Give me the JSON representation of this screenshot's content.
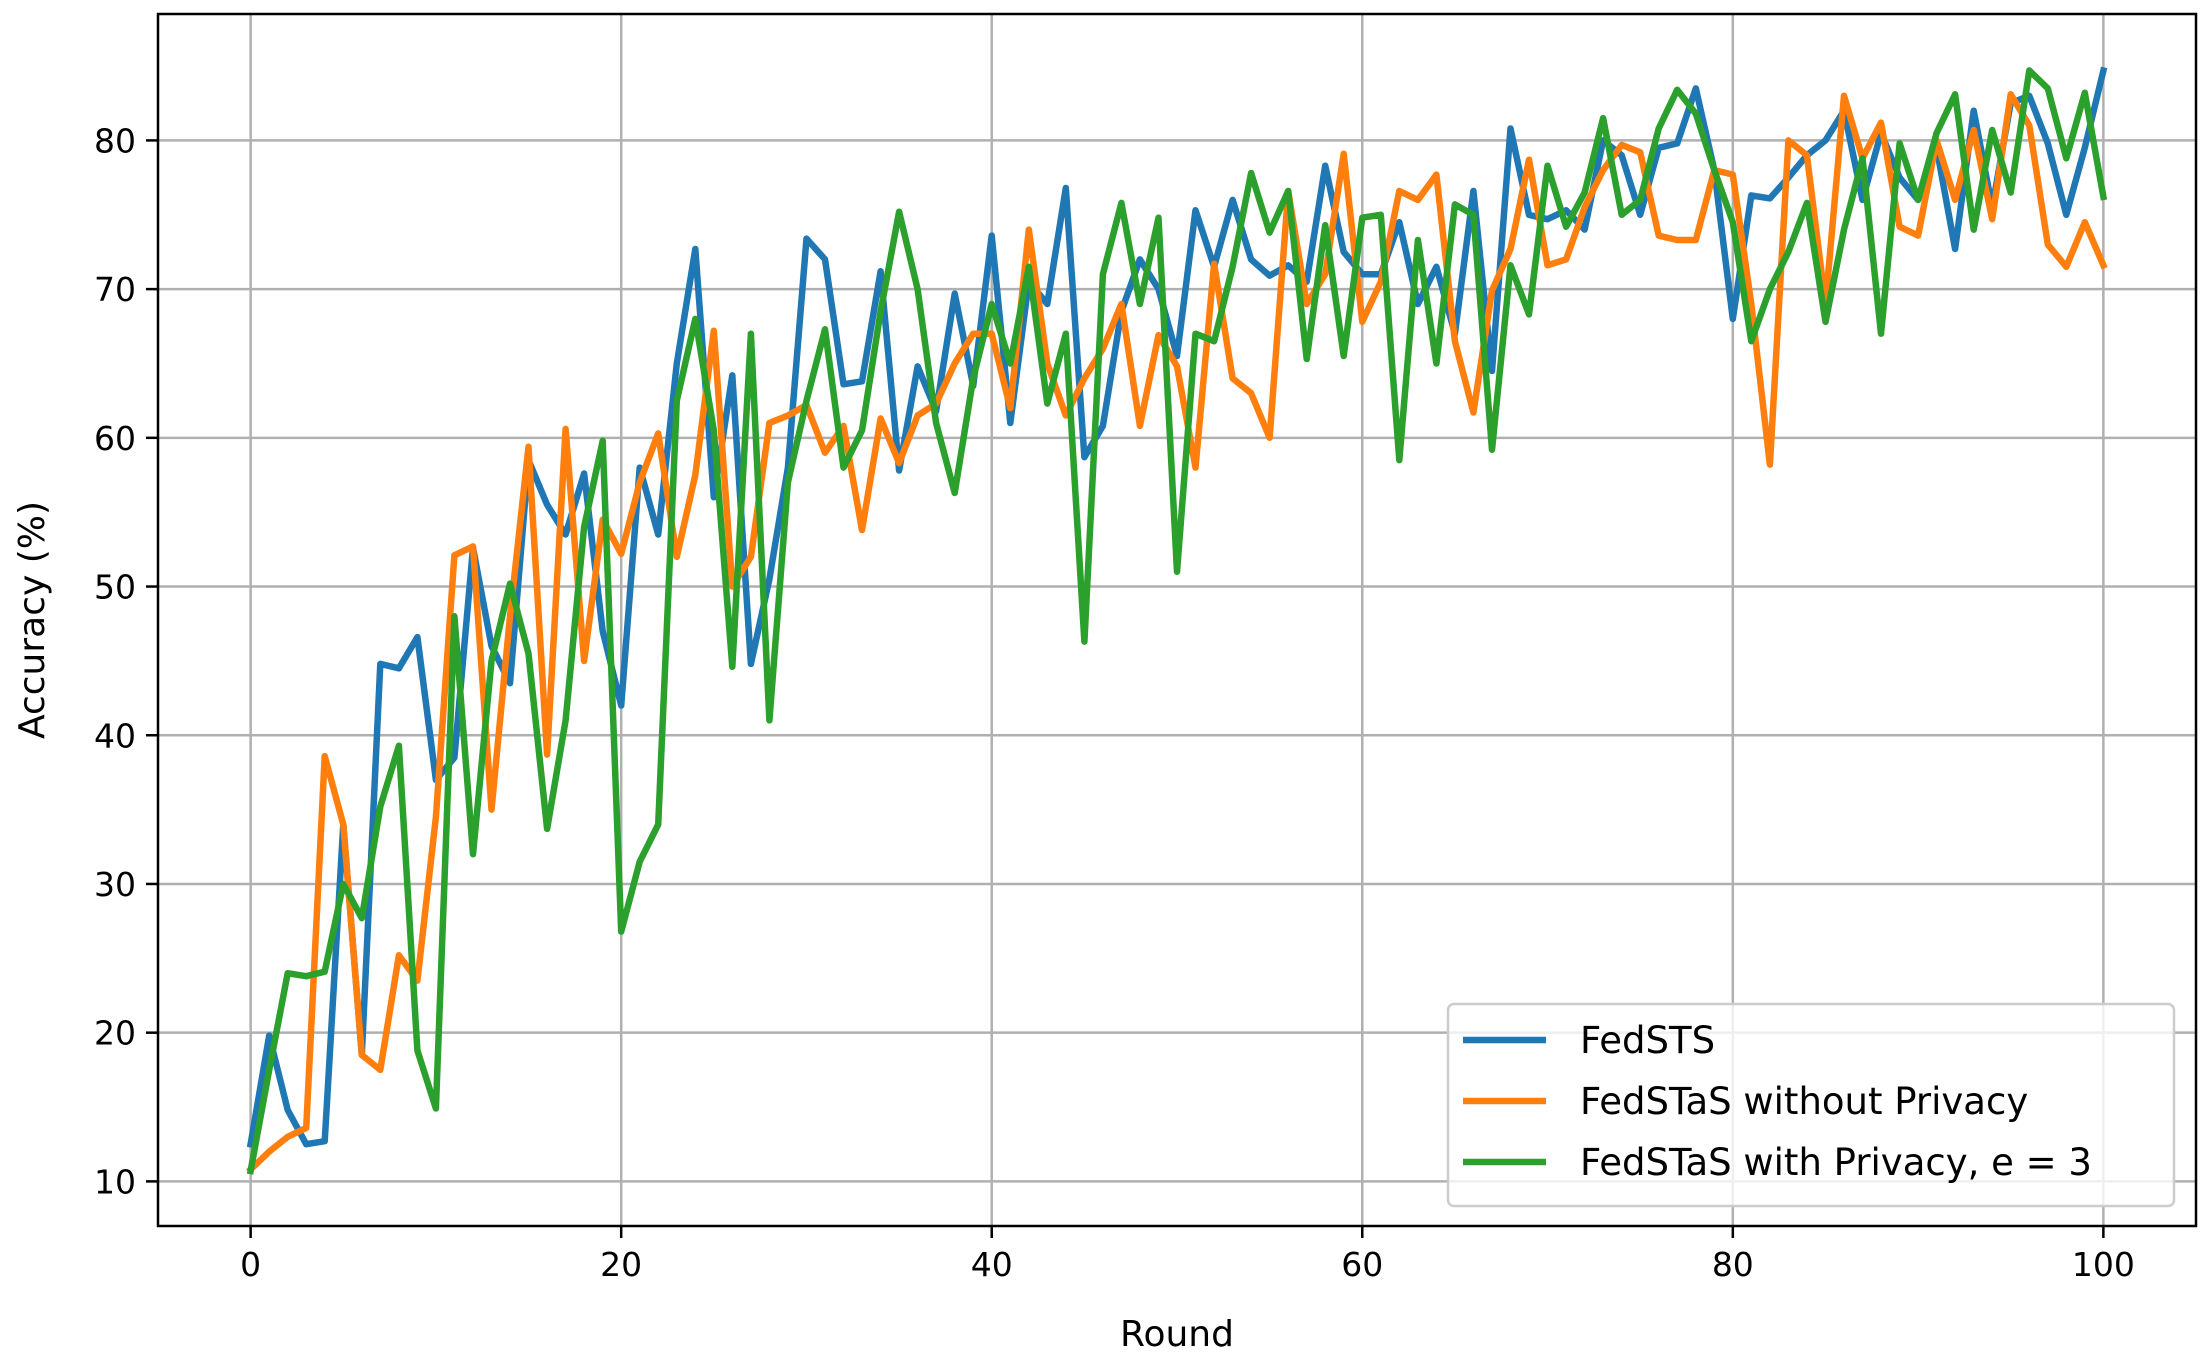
{
  "chart_data": {
    "type": "line",
    "title": "",
    "xlabel": "Round",
    "ylabel": "Accuracy (%)",
    "xlim": [
      -5,
      105
    ],
    "ylim": [
      7,
      88.5
    ],
    "xticks": [
      0,
      20,
      40,
      60,
      80,
      100
    ],
    "yticks": [
      10,
      20,
      30,
      40,
      50,
      60,
      70,
      80
    ],
    "grid": true,
    "legend_position": "lower-right",
    "series": [
      {
        "name": "FedSTS",
        "color": "#1f77b4",
        "values": [
          12.5,
          19.8,
          14.8,
          12.5,
          12.7,
          34.0,
          18.5,
          44.8,
          44.5,
          46.6,
          37.0,
          38.5,
          52.6,
          46.0,
          43.5,
          58.5,
          55.5,
          53.5,
          57.6,
          47.0,
          42.0,
          58.0,
          53.5,
          65.0,
          72.7,
          56.0,
          64.2,
          44.8,
          50.5,
          58.0,
          73.4,
          72.0,
          63.6,
          63.8,
          71.2,
          57.8,
          64.8,
          61.8,
          69.7,
          63.5,
          73.6,
          61.0,
          70.5,
          69.0,
          76.8,
          58.7,
          60.8,
          68.5,
          72.0,
          70.0,
          65.5,
          75.3,
          71.5,
          76.0,
          72.0,
          70.9,
          71.6,
          70.5,
          78.3,
          72.5,
          71.0,
          71.0,
          74.5,
          69.0,
          71.5,
          67.0,
          76.6,
          64.5,
          80.8,
          75.0,
          74.7,
          75.3,
          74.0,
          80.0,
          79.0,
          75.0,
          79.5,
          79.8,
          83.5,
          78.0,
          68.0,
          76.3,
          76.1,
          77.5,
          79.0,
          80.0,
          82.0,
          76.0,
          80.5,
          77.5,
          76.0,
          79.5,
          72.7,
          82.0,
          75.5,
          82.5,
          83.0,
          79.8,
          75.0,
          79.5,
          84.7
        ]
      },
      {
        "name": "FedSTaS without Privacy",
        "color": "#ff7f0e",
        "values": [
          10.8,
          12.0,
          13.0,
          13.6,
          38.6,
          34.0,
          18.5,
          17.5,
          25.2,
          23.5,
          34.5,
          52.1,
          52.7,
          35.0,
          48.0,
          59.4,
          38.7,
          60.6,
          45.0,
          54.5,
          52.2,
          57.0,
          60.3,
          52.0,
          57.5,
          67.2,
          50.0,
          52.0,
          61.0,
          61.5,
          62.2,
          59.0,
          60.8,
          53.8,
          61.3,
          58.3,
          61.5,
          62.3,
          65.0,
          67.0,
          67.0,
          62.0,
          74.0,
          65.0,
          61.5,
          64.0,
          66.0,
          69.0,
          60.8,
          66.9,
          64.8,
          58.0,
          71.7,
          64.0,
          63.0,
          60.0,
          76.6,
          69.0,
          71.0,
          79.1,
          67.8,
          70.5,
          76.6,
          76.0,
          77.7,
          66.5,
          61.7,
          69.9,
          72.7,
          78.7,
          71.6,
          72.0,
          75.5,
          78.0,
          79.7,
          79.2,
          73.6,
          73.3,
          73.3,
          78.0,
          77.7,
          69.0,
          58.2,
          80.0,
          79.0,
          69.0,
          83.0,
          78.8,
          81.2,
          74.2,
          73.6,
          80.0,
          76.0,
          80.7,
          74.7,
          83.1,
          81.0,
          73.0,
          71.5,
          74.5,
          71.6
        ]
      },
      {
        "name": "FedSTaS with Privacy, e = 3",
        "color": "#2ca02c",
        "values": [
          10.7,
          17.5,
          24.0,
          23.8,
          24.1,
          30.0,
          27.7,
          35.2,
          39.3,
          18.8,
          14.9,
          48.0,
          32.0,
          45.0,
          50.2,
          45.5,
          33.7,
          41.0,
          54.0,
          59.8,
          26.8,
          31.5,
          34.0,
          62.5,
          68.0,
          60.5,
          44.6,
          67.0,
          41.0,
          57.0,
          62.5,
          67.3,
          58.0,
          60.5,
          68.5,
          75.2,
          70.0,
          61.0,
          56.3,
          64.0,
          69.0,
          65.0,
          71.5,
          62.3,
          67.0,
          46.3,
          71.0,
          75.8,
          69.0,
          74.8,
          51.0,
          67.0,
          66.5,
          71.5,
          77.8,
          73.8,
          76.6,
          65.3,
          74.3,
          65.5,
          74.8,
          75.0,
          58.5,
          73.3,
          65.0,
          75.7,
          75.0,
          59.2,
          71.6,
          68.3,
          78.3,
          74.2,
          76.5,
          81.5,
          75.0,
          76.0,
          80.8,
          83.4,
          81.8,
          78.0,
          74.5,
          66.5,
          70.0,
          72.5,
          75.8,
          67.8,
          74.0,
          78.8,
          67.0,
          79.8,
          76.0,
          80.5,
          83.1,
          74.0,
          80.7,
          76.5,
          84.7,
          83.5,
          78.8,
          83.2,
          76.2
        ]
      }
    ]
  }
}
